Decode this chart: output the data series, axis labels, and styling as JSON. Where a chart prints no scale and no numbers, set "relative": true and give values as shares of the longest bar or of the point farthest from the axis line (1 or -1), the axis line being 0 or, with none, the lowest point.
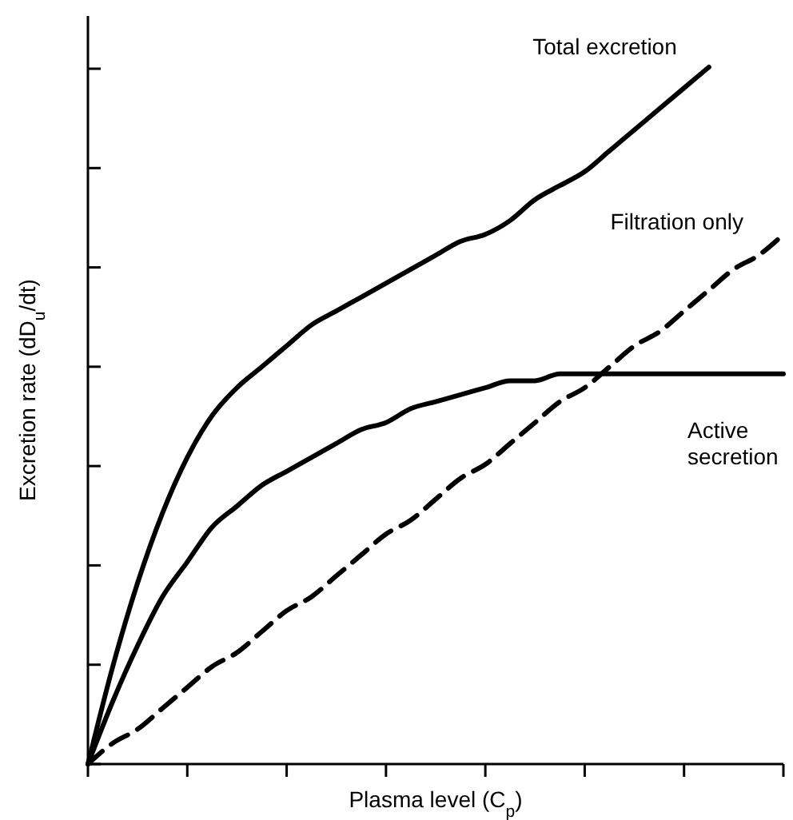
{
  "chart_data": {
    "type": "line",
    "relative": true,
    "xlabel": "Plasma level (C$_{p}$)",
    "ylabel": "Excretion rate (dD$_{u}$/dt)",
    "categories": [
      null,
      null,
      null,
      null,
      null,
      null,
      null,
      null,
      null,
      null,
      null,
      null,
      null,
      null,
      null,
      null,
      null,
      null,
      null,
      null,
      null,
      null,
      null,
      null,
      null,
      null,
      null,
      null,
      null
    ],
    "series": [
      {
        "name": "Total excretion",
        "color": "#000000",
        "line_style": "solid",
        "values": [
          0,
          0.14,
          0.26,
          0.36,
          0.44,
          0.5,
          0.54,
          0.57,
          0.6,
          0.63,
          0.65,
          0.67,
          0.69,
          0.71,
          0.73,
          0.75,
          0.76,
          0.78,
          0.81,
          0.83,
          0.85,
          0.88,
          0.91,
          0.94,
          0.97,
          1,
          null,
          null,
          null
        ]
      },
      {
        "name": "Filtration only",
        "color": "#000000",
        "line_style": "dashed",
        "values": [
          0,
          0.03,
          0.05,
          0.08,
          0.11,
          0.14,
          0.16,
          0.19,
          0.22,
          0.24,
          0.27,
          0.3,
          0.33,
          0.35,
          0.38,
          0.41,
          0.43,
          0.46,
          0.49,
          0.52,
          0.54,
          0.57,
          0.6,
          0.62,
          0.65,
          0.68,
          0.71,
          0.73,
          0.76
        ]
      },
      {
        "name": "Active secretion",
        "color": "#000000",
        "line_style": "solid",
        "values": [
          0,
          0.09,
          0.17,
          0.24,
          0.29,
          0.34,
          0.37,
          0.4,
          0.42,
          0.44,
          0.46,
          0.48,
          0.49,
          0.51,
          0.52,
          0.53,
          0.54,
          0.55,
          0.55,
          0.56,
          0.56,
          0.56,
          0.56,
          0.56,
          0.56,
          0.56,
          0.56,
          0.56,
          0.56
        ]
      }
    ]
  }
}
